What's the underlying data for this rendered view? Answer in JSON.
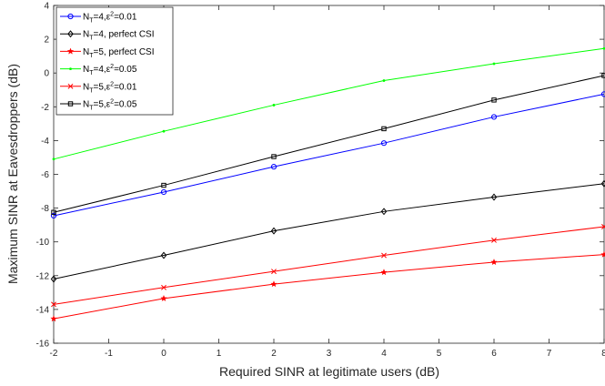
{
  "chart_data": {
    "type": "line",
    "xlabel": "Required SINR at legitimate users (dB)",
    "ylabel": "Maximum SINR at Eavesdroppers (dB)",
    "xlim": [
      -2,
      8
    ],
    "ylim": [
      -16,
      4
    ],
    "xticks": [
      "-2",
      "-1",
      "0",
      "1",
      "2",
      "3",
      "4",
      "5",
      "6",
      "7",
      "8"
    ],
    "yticks": [
      "-16",
      "-14",
      "-12",
      "-10",
      "-8",
      "-6",
      "-4",
      "-2",
      "0",
      "2",
      "4"
    ],
    "grid": false,
    "legend_position": "top-left",
    "x": [
      -2,
      0,
      2,
      4,
      6,
      8
    ],
    "series": [
      {
        "legend": [
          "N",
          "T",
          "=4,",
          "ε",
          "2",
          "=0.01"
        ],
        "color": "#0000ff",
        "marker": "circle",
        "values": [
          -8.45,
          -7.05,
          -5.55,
          -4.15,
          -2.6,
          -1.25
        ]
      },
      {
        "legend": [
          "N",
          "T",
          "=4, perfect CSI",
          "",
          "",
          ""
        ],
        "color": "#000000",
        "marker": "diamond",
        "values": [
          -12.2,
          -10.8,
          -9.35,
          -8.2,
          -7.35,
          -6.55
        ]
      },
      {
        "legend": [
          "N",
          "T",
          "=5, perfect CSI",
          "",
          "",
          ""
        ],
        "color": "#ff0000",
        "marker": "star",
        "values": [
          -14.55,
          -13.35,
          -12.5,
          -11.8,
          -11.2,
          -10.75
        ]
      },
      {
        "legend": [
          "N",
          "T",
          "=4,",
          "ε",
          "2",
          "=0.05"
        ],
        "color": "#00ff00",
        "marker": "point",
        "values": [
          -5.1,
          -3.45,
          -1.9,
          -0.45,
          0.55,
          1.45
        ]
      },
      {
        "legend": [
          "N",
          "T",
          "=5,",
          "ε",
          "2",
          "=0.01"
        ],
        "color": "#ff0000",
        "marker": "x",
        "values": [
          -13.7,
          -12.7,
          -11.75,
          -10.8,
          -9.9,
          -9.1
        ]
      },
      {
        "legend": [
          "N",
          "T",
          "=5,",
          "ε",
          "2",
          "=0.05"
        ],
        "color": "#000000",
        "marker": "square",
        "values": [
          -8.25,
          -6.65,
          -4.95,
          -3.3,
          -1.6,
          -0.15
        ]
      }
    ]
  }
}
